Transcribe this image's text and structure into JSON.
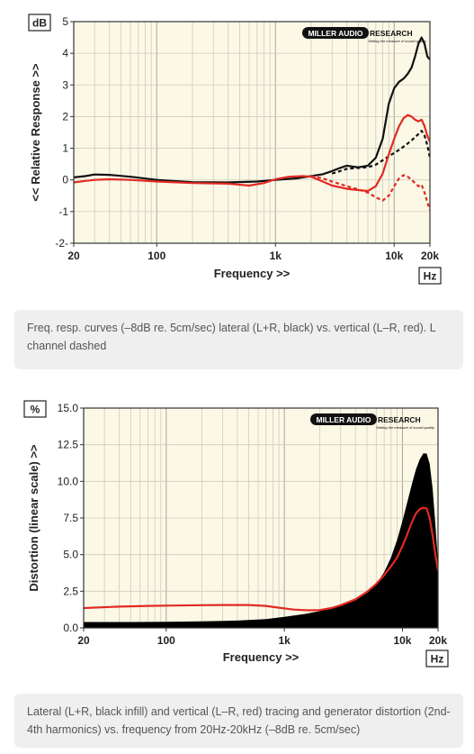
{
  "chart_data": [
    {
      "type": "line",
      "unit_box": "dB",
      "xlabel": "Frequency >>",
      "xunit_box": "Hz",
      "ylabel": "<< Relative Response >>",
      "x_scale": "log",
      "xlim": [
        20,
        20000
      ],
      "ylim": [
        -2,
        5
      ],
      "grid": true,
      "logo": "MILLER AUDIO RESEARCH",
      "logo_tagline": "Setting the measure of sound quality",
      "x_ticks": [
        {
          "v": 20,
          "label": "20"
        },
        {
          "v": 100,
          "label": "100"
        },
        {
          "v": 1000,
          "label": "1k"
        },
        {
          "v": 10000,
          "label": "10k"
        },
        {
          "v": 20000,
          "label": "20k"
        }
      ],
      "y_ticks": [
        {
          "v": 5,
          "label": "5"
        },
        {
          "v": 4,
          "label": "4"
        },
        {
          "v": 3,
          "label": "3"
        },
        {
          "v": 2,
          "label": "2"
        },
        {
          "v": 1,
          "label": "1"
        },
        {
          "v": 0,
          "label": "0"
        },
        {
          "v": -1,
          "label": "-1"
        },
        {
          "v": -2,
          "label": "-2-"
        }
      ],
      "series": [
        {
          "color": "#111111",
          "dashed": false,
          "x": [
            20,
            25,
            30,
            40,
            60,
            100,
            200,
            400,
            700,
            1000,
            1500,
            2000,
            2500,
            3000,
            3500,
            4000,
            4500,
            5000,
            6000,
            7000,
            8000,
            9000,
            10000,
            11000,
            12000,
            13000,
            14000,
            15000,
            16000,
            17000,
            18000,
            19000,
            20000
          ],
          "y": [
            0.08,
            0.12,
            0.17,
            0.16,
            0.1,
            0.0,
            -0.07,
            -0.08,
            -0.05,
            0.0,
            0.05,
            0.12,
            0.18,
            0.28,
            0.38,
            0.45,
            0.42,
            0.4,
            0.45,
            0.7,
            1.3,
            2.4,
            2.9,
            3.1,
            3.2,
            3.35,
            3.55,
            3.9,
            4.3,
            4.5,
            4.3,
            3.9,
            3.8
          ]
        },
        {
          "color": "#111111",
          "dashed": true,
          "x": [
            3000,
            3500,
            4000,
            5000,
            6000,
            7000,
            8000,
            9000,
            10000,
            11000,
            12000,
            13000,
            14000,
            15000,
            16000,
            17000,
            18000,
            19000,
            20000
          ],
          "y": [
            0.2,
            0.28,
            0.35,
            0.38,
            0.4,
            0.48,
            0.62,
            0.75,
            0.85,
            0.95,
            1.05,
            1.15,
            1.25,
            1.35,
            1.45,
            1.55,
            1.4,
            1.1,
            0.7
          ]
        },
        {
          "color": "#e12a22",
          "dashed": false,
          "x": [
            20,
            25,
            30,
            40,
            60,
            100,
            200,
            400,
            600,
            800,
            1000,
            1300,
            1700,
            2000,
            2500,
            3000,
            4000,
            5000,
            6000,
            7000,
            8000,
            9000,
            10000,
            11000,
            12000,
            13000,
            14000,
            15000,
            16000,
            17000,
            18000,
            19000,
            20000
          ],
          "y": [
            -0.08,
            -0.03,
            0.0,
            0.02,
            0.0,
            -0.05,
            -0.1,
            -0.12,
            -0.18,
            -0.1,
            0.02,
            0.1,
            0.12,
            0.1,
            -0.05,
            -0.18,
            -0.28,
            -0.32,
            -0.35,
            -0.2,
            0.2,
            0.8,
            1.3,
            1.7,
            1.95,
            2.05,
            2.0,
            1.9,
            1.85,
            1.9,
            1.7,
            1.4,
            1.2
          ]
        },
        {
          "color": "#e12a22",
          "dashed": true,
          "x": [
            2000,
            2500,
            3000,
            4000,
            5000,
            6000,
            7000,
            8000,
            9000,
            10000,
            11000,
            12000,
            13000,
            14000,
            15000,
            16000,
            17000,
            18000,
            19000,
            20000
          ],
          "y": [
            0.12,
            0.05,
            -0.05,
            -0.2,
            -0.3,
            -0.4,
            -0.55,
            -0.65,
            -0.5,
            -0.2,
            0.05,
            0.15,
            0.1,
            0.0,
            -0.1,
            -0.2,
            -0.15,
            -0.4,
            -0.7,
            -0.95
          ]
        }
      ]
    },
    {
      "type": "area",
      "unit_box": "%",
      "xlabel": "Frequency >>",
      "xunit_box": "Hz",
      "ylabel": "Distortion (linear scale) >>",
      "x_scale": "log",
      "xlim": [
        20,
        20000
      ],
      "ylim": [
        0,
        15
      ],
      "grid": true,
      "logo": "MILLER AUDIO RESEARCH",
      "logo_tagline": "Setting the measure of sound quality",
      "x_ticks": [
        {
          "v": 20,
          "label": "20"
        },
        {
          "v": 100,
          "label": "100"
        },
        {
          "v": 1000,
          "label": "1k"
        },
        {
          "v": 10000,
          "label": "10k"
        },
        {
          "v": 20000,
          "label": "20k"
        }
      ],
      "y_ticks": [
        {
          "v": 15,
          "label": "15.0"
        },
        {
          "v": 12.5,
          "label": "12.5"
        },
        {
          "v": 10,
          "label": "10.0"
        },
        {
          "v": 7.5,
          "label": "7.5"
        },
        {
          "v": 5,
          "label": "5.0"
        },
        {
          "v": 2.5,
          "label": "2.5"
        },
        {
          "v": 0,
          "label": "0.0"
        }
      ],
      "series": [
        {
          "color": "#000000",
          "fill": true,
          "x": [
            20,
            50,
            100,
            200,
            400,
            700,
            1000,
            1500,
            2000,
            3000,
            4000,
            5000,
            6000,
            7000,
            8000,
            9000,
            10000,
            11000,
            12000,
            13000,
            14000,
            15000,
            16000,
            17000,
            18000,
            19000,
            20000
          ],
          "y": [
            0.4,
            0.4,
            0.42,
            0.45,
            0.5,
            0.6,
            0.75,
            0.95,
            1.15,
            1.5,
            1.9,
            2.4,
            3.0,
            3.8,
            4.8,
            6.0,
            7.3,
            8.6,
            9.8,
            10.8,
            11.5,
            11.9,
            11.9,
            11.2,
            9.5,
            7.0,
            4.5
          ]
        },
        {
          "color": "#e12a22",
          "fill": false,
          "x": [
            20,
            40,
            70,
            100,
            200,
            300,
            500,
            700,
            900,
            1200,
            1600,
            2000,
            2500,
            3000,
            4000,
            5000,
            6000,
            7000,
            8000,
            9000,
            10000,
            11000,
            12000,
            13000,
            14000,
            15000,
            16000,
            17000,
            18000,
            19000,
            20000
          ],
          "y": [
            1.35,
            1.45,
            1.5,
            1.52,
            1.55,
            1.56,
            1.56,
            1.5,
            1.38,
            1.25,
            1.2,
            1.22,
            1.35,
            1.55,
            1.95,
            2.45,
            3.0,
            3.6,
            4.2,
            4.8,
            5.6,
            6.4,
            7.2,
            7.8,
            8.1,
            8.2,
            8.15,
            7.5,
            6.3,
            5.0,
            3.9
          ]
        }
      ]
    }
  ],
  "captions": {
    "fig1": "Freq. resp. curves (–8dB re. 5cm/sec) lateral (L+R, black) vs. vertical (L–R, red). L channel dashed",
    "fig2": "Lateral (L+R, black infill) and vertical (L–R, red) tracing and generator distortion (2nd-4th harmonics) vs. frequency from 20Hz-20kHz (–8dB re. 5cm/sec)"
  }
}
